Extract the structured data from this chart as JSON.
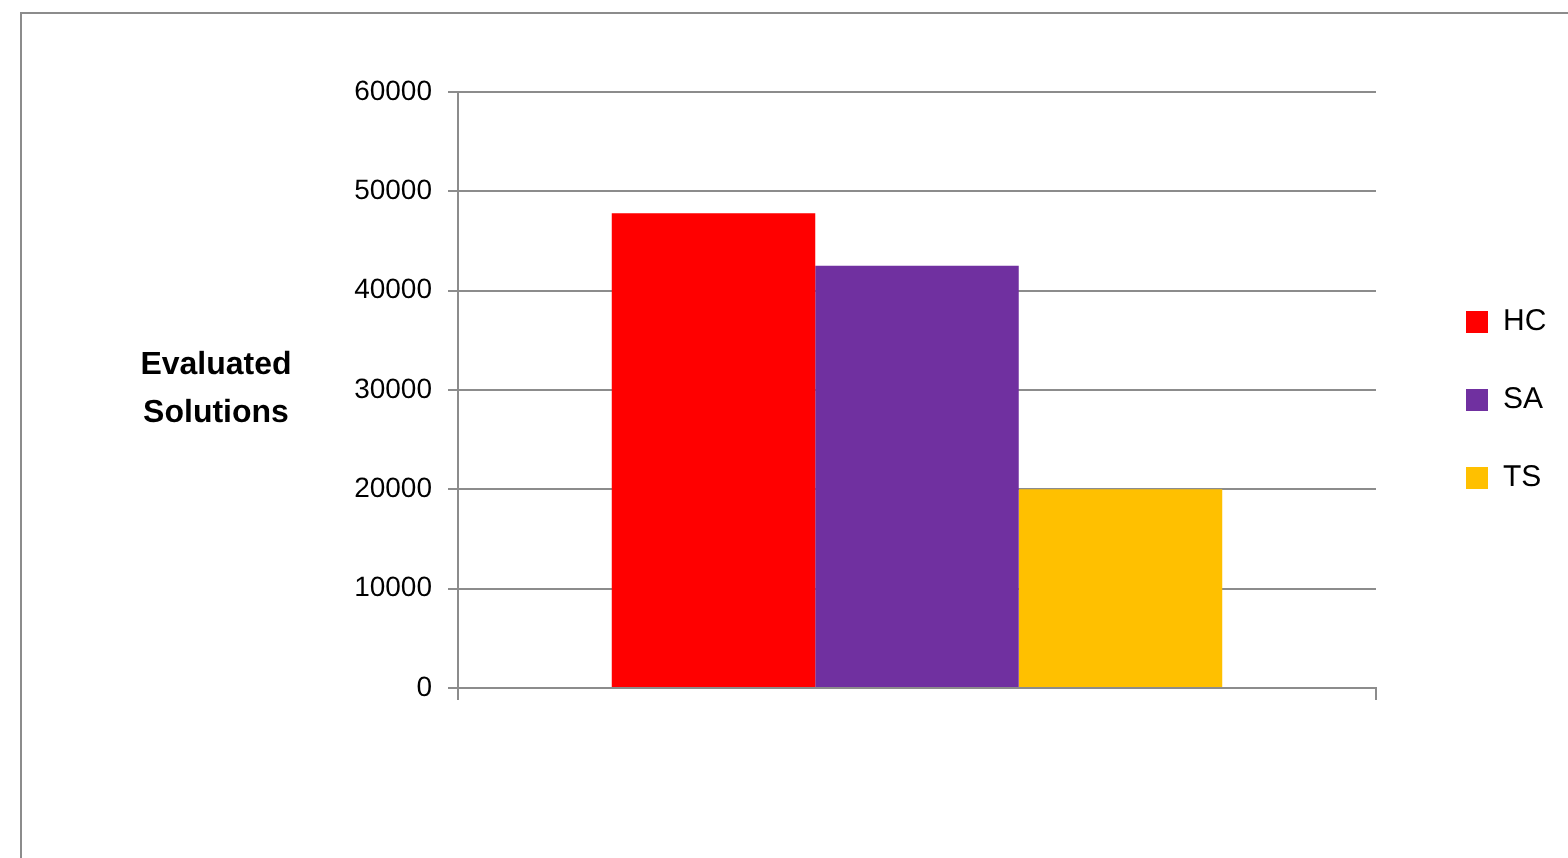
{
  "chart_data": {
    "type": "bar",
    "ylabel": "Evaluated Solutions",
    "categories": [
      null
    ],
    "series": [
      {
        "name": "HC",
        "color": "#ff0000",
        "values": [
          47800
        ]
      },
      {
        "name": "SA",
        "color": "#7030a0",
        "values": [
          42500
        ]
      },
      {
        "name": "TS",
        "color": "#ffc000",
        "values": [
          20000
        ]
      }
    ],
    "ylim": [
      0,
      60000
    ],
    "yticks": [
      0,
      10000,
      20000,
      30000,
      40000,
      50000,
      60000
    ],
    "grid": "y",
    "legend": "right"
  }
}
